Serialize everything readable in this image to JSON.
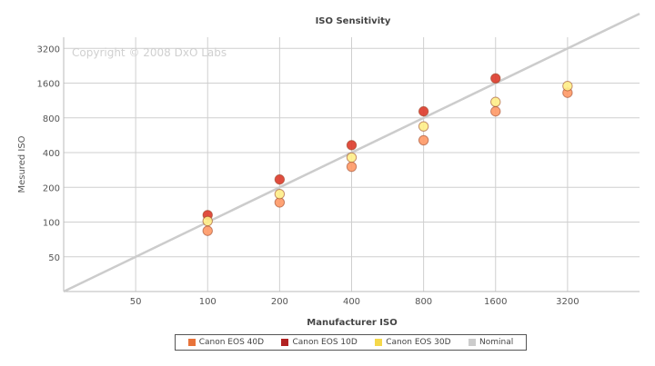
{
  "chart_data": {
    "type": "scatter",
    "title": "ISO Sensitivity",
    "watermark": "Copyright © 2008 DxO Labs",
    "xlabel": "Manufacturer ISO",
    "ylabel": "Mesured ISO",
    "x_scale": "log",
    "y_scale": "log",
    "xlim": [
      25,
      6400
    ],
    "ylim": [
      25,
      4000
    ],
    "x_ticks": [
      50,
      100,
      200,
      400,
      800,
      1600,
      3200
    ],
    "x_tick_labels": [
      "50",
      "100",
      "200",
      "400",
      "800",
      "1600",
      "3200"
    ],
    "y_ticks": [
      50,
      100,
      200,
      400,
      800,
      1600,
      3200
    ],
    "y_tick_labels": [
      "50",
      "100",
      "200",
      "400",
      "800",
      "1600",
      "3200"
    ],
    "grid": true,
    "legend_position": "bottom",
    "series": [
      {
        "name": "Canon EOS 40D",
        "color": "#ff9966",
        "legend_color": "#e8733a",
        "points": [
          [
            100,
            84
          ],
          [
            200,
            148
          ],
          [
            400,
            302
          ],
          [
            800,
            512
          ],
          [
            1600,
            911
          ],
          [
            3200,
            1321
          ]
        ]
      },
      {
        "name": "Canon EOS 10D",
        "color": "#dd3a2a",
        "legend_color": "#b22222",
        "points": [
          [
            100,
            115
          ],
          [
            200,
            234
          ],
          [
            400,
            464
          ],
          [
            800,
            911
          ],
          [
            1600,
            1760
          ]
        ]
      },
      {
        "name": "Canon EOS 30D",
        "color": "#ffee88",
        "legend_color": "#f5d84a",
        "points": [
          [
            100,
            102
          ],
          [
            200,
            175
          ],
          [
            400,
            363
          ],
          [
            800,
            675
          ],
          [
            1600,
            1100
          ],
          [
            3200,
            1510
          ]
        ]
      },
      {
        "name": "Nominal",
        "type": "line",
        "color": "#cccccc",
        "legend_color": "#cccccc",
        "points": [
          [
            25,
            25
          ],
          [
            6400,
            6400
          ]
        ]
      }
    ]
  }
}
